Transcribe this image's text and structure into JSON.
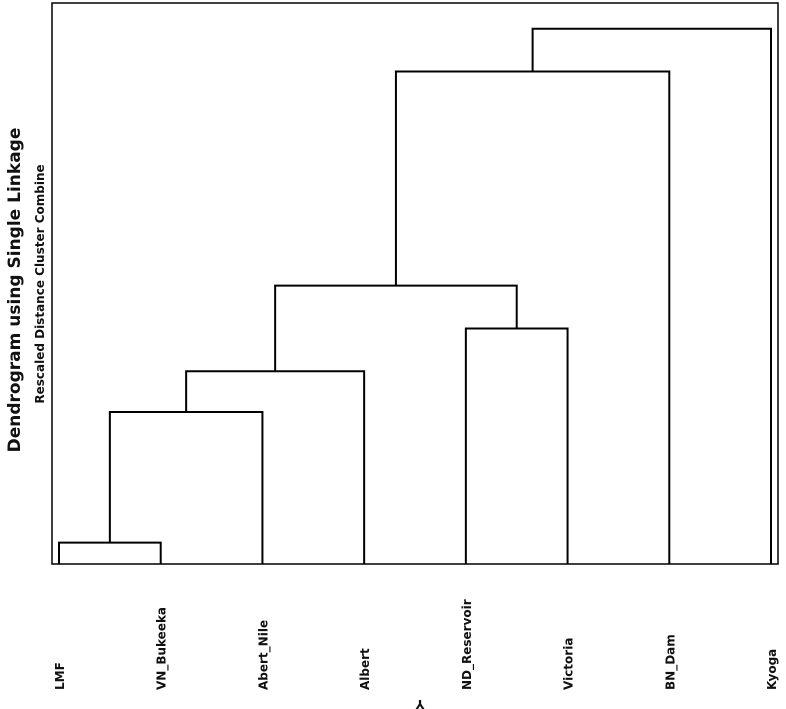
{
  "chart_data": {
    "type": "dendrogram",
    "title": "Dendrogram using Single Linkage",
    "subtitle": "Rescaled Distance Cluster Combine",
    "x_label": "Y",
    "categories": [
      "LMF",
      "VN_Bukeeka",
      "Abert_Nile",
      "Albert",
      "ND_Reservoir",
      "Victoria",
      "BN_Dam",
      "Kyoga"
    ],
    "merges": [
      {
        "left": 0,
        "right": 1,
        "height": 1.0
      },
      {
        "left": 8,
        "right": 2,
        "height": 7.1
      },
      {
        "left": 9,
        "right": 3,
        "height": 9.0
      },
      {
        "left": 4,
        "right": 5,
        "height": 11.0
      },
      {
        "left": 10,
        "right": 11,
        "height": 13.0
      },
      {
        "left": 12,
        "right": 6,
        "height": 23.0
      },
      {
        "left": 13,
        "right": 7,
        "height": 25.0
      }
    ],
    "ylim": [
      0,
      26.2
    ],
    "color": "#000000"
  }
}
